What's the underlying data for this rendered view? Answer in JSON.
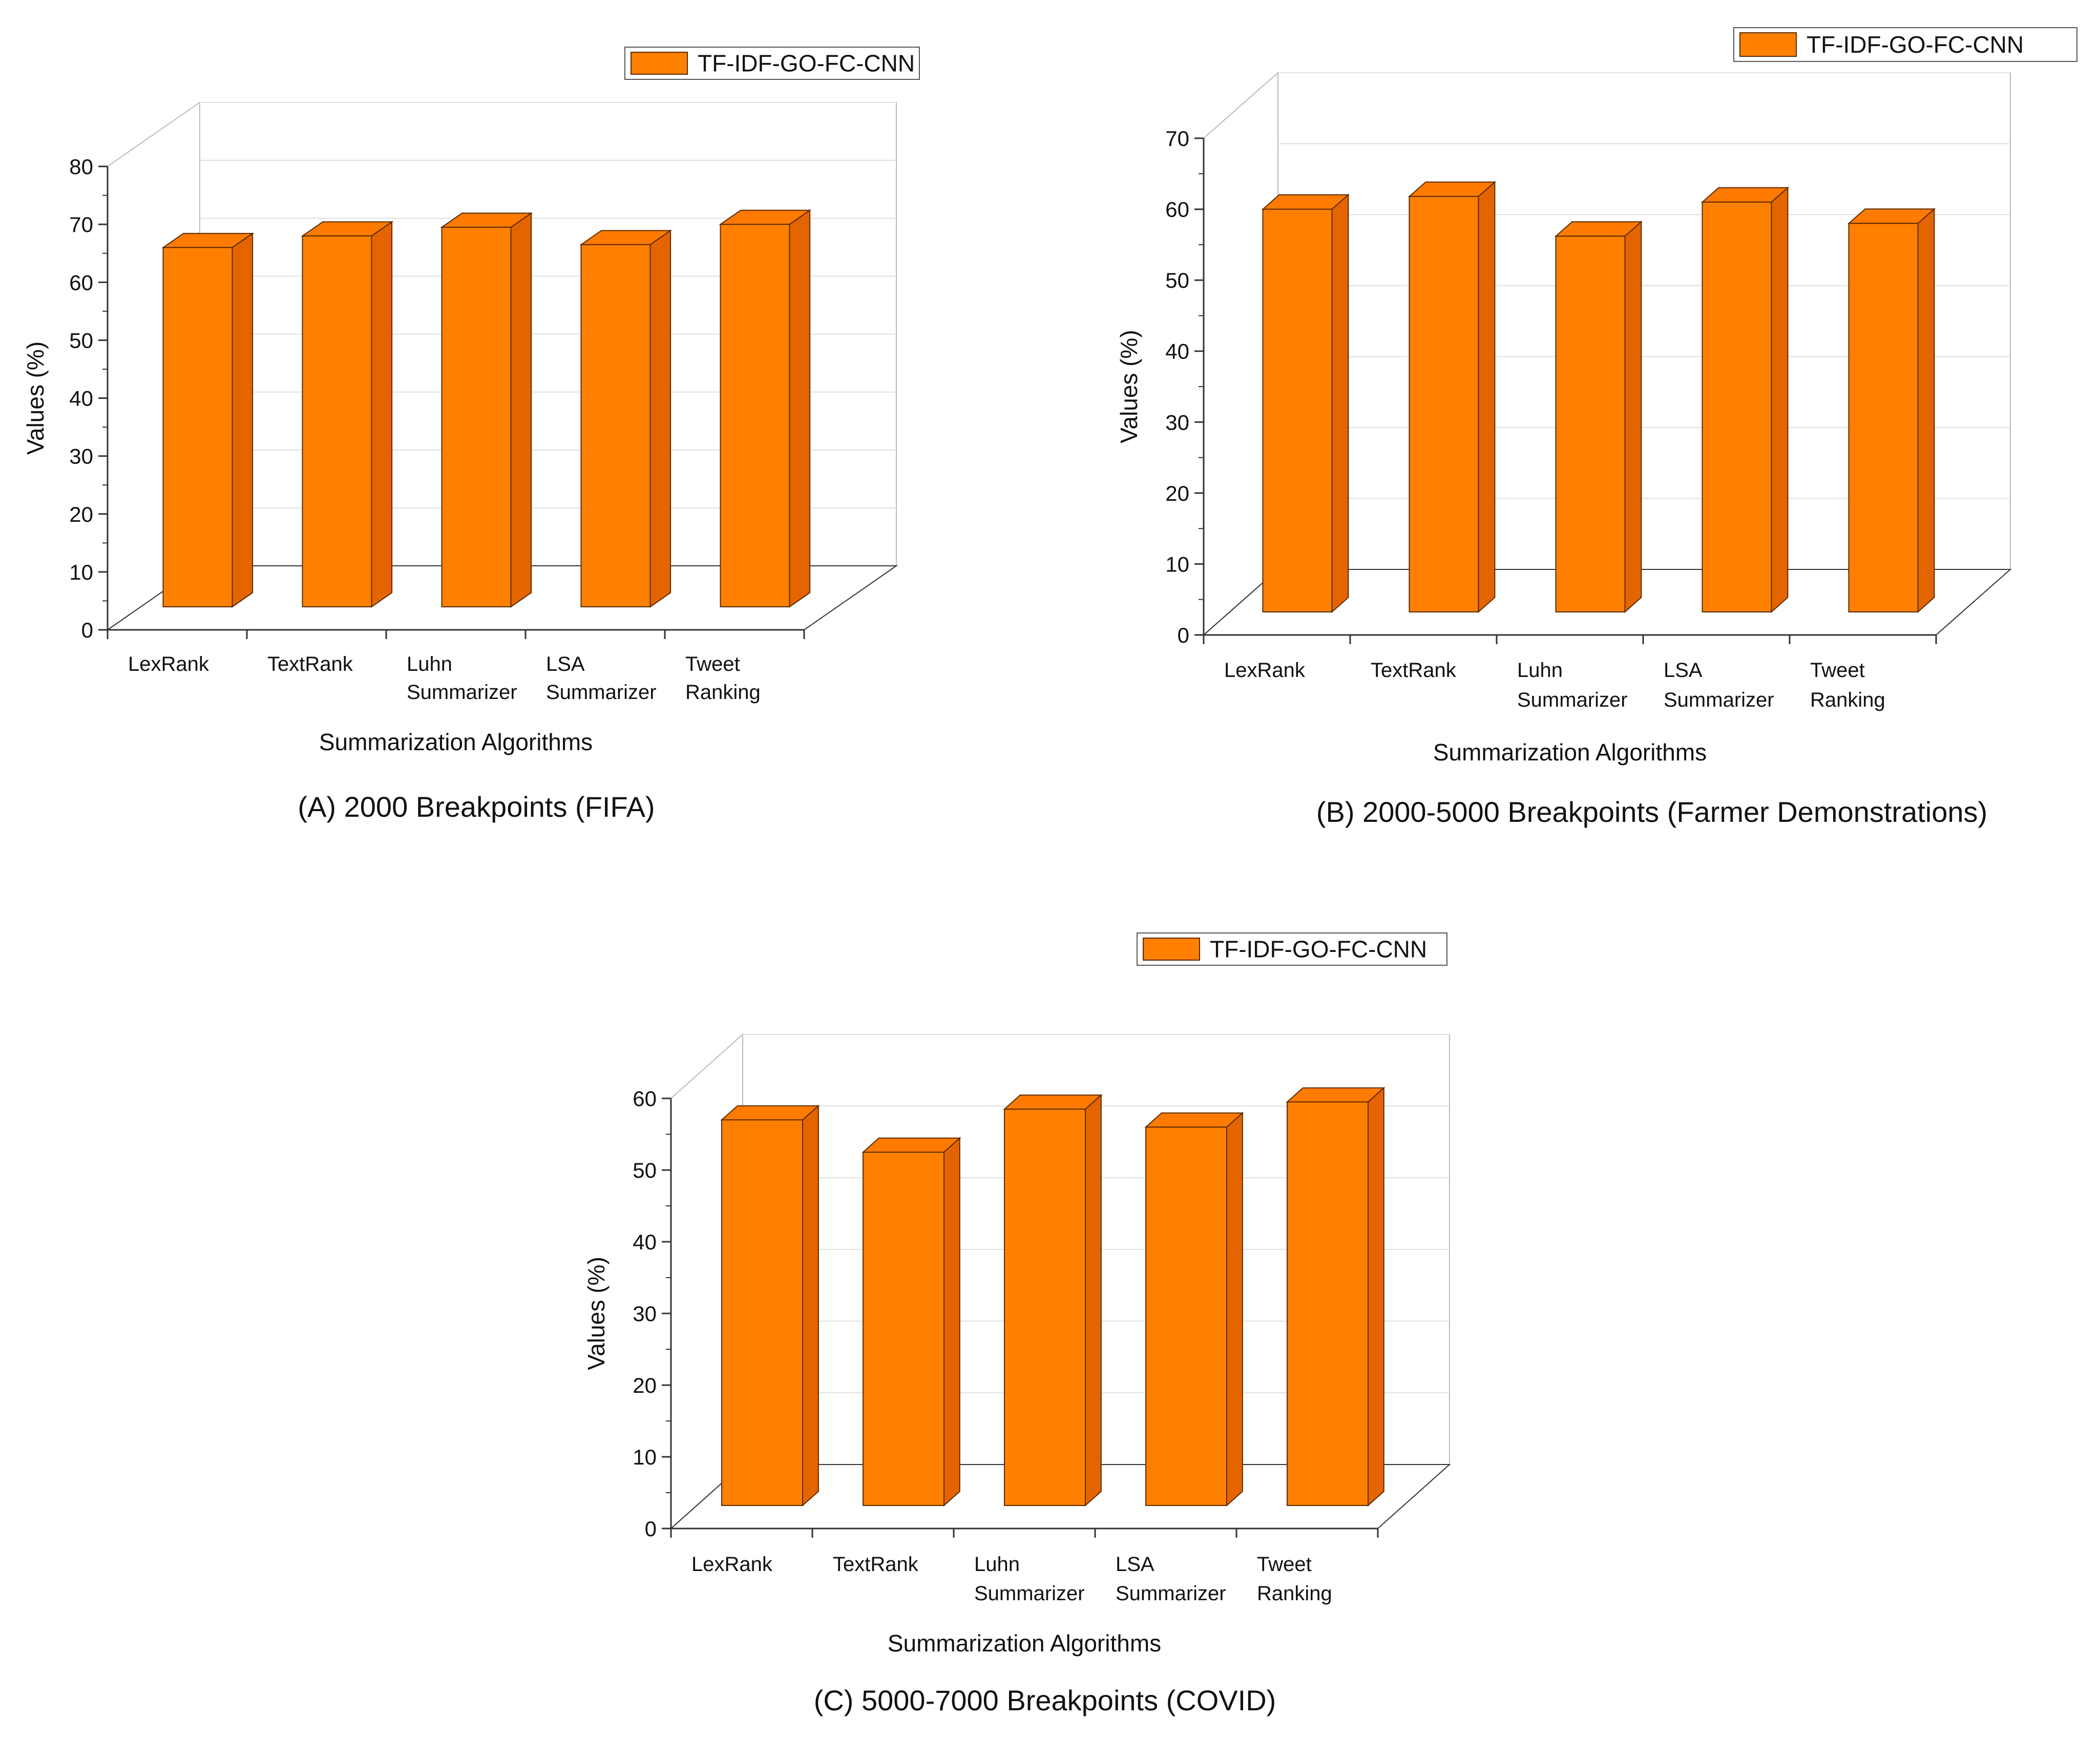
{
  "colors": {
    "bar_front": "#ff8000",
    "bar_top": "#ff7a00",
    "bar_side": "#e46500",
    "bar_edge": "#5a2a00",
    "axis": "#333333",
    "grid": "#e0e0e0"
  },
  "chart_data": [
    {
      "type": "bar",
      "caption": "(A) 2000 Breakpoints (FIFA)",
      "legend": "TF-IDF-GO-FC-CNN",
      "xlabel": "Summarization Algorithms",
      "ylabel": "Values (%)",
      "categories": [
        [
          "LexRank"
        ],
        [
          "TextRank"
        ],
        [
          "Luhn",
          "Summarizer"
        ],
        [
          "LSA",
          "Summarizer"
        ],
        [
          "Tweet",
          "Ranking"
        ]
      ],
      "values": [
        66,
        68,
        69.5,
        66.5,
        70
      ],
      "ylim": [
        0,
        80
      ],
      "yticks": [
        0,
        10,
        20,
        30,
        40,
        50,
        60,
        70,
        80
      ],
      "grid": true,
      "legend_position": "top-right"
    },
    {
      "type": "bar",
      "caption": "(B) 2000-5000 Breakpoints (Farmer Demonstrations)",
      "legend": "TF-IDF-GO-FC-CNN",
      "xlabel": "Summarization Algorithms",
      "ylabel": "Values (%)",
      "categories": [
        [
          "LexRank"
        ],
        [
          "TextRank"
        ],
        [
          "Luhn",
          "Summarizer"
        ],
        [
          "LSA",
          "Summarizer"
        ],
        [
          "Tweet",
          "Ranking"
        ]
      ],
      "values": [
        60,
        61.8,
        56.2,
        61,
        58
      ],
      "ylim": [
        0,
        70
      ],
      "yticks": [
        0,
        10,
        20,
        30,
        40,
        50,
        60,
        70
      ],
      "grid": true,
      "legend_position": "top-right"
    },
    {
      "type": "bar",
      "caption": "(C) 5000-7000 Breakpoints (COVID)",
      "legend": "TF-IDF-GO-FC-CNN",
      "xlabel": "Summarization Algorithms",
      "ylabel": "Values (%)",
      "categories": [
        [
          "LexRank"
        ],
        [
          "TextRank"
        ],
        [
          "Luhn",
          "Summarizer"
        ],
        [
          "LSA",
          "Summarizer"
        ],
        [
          "Tweet",
          "Ranking"
        ]
      ],
      "values": [
        57,
        52.5,
        58.5,
        56,
        59.5
      ],
      "ylim": [
        0,
        60
      ],
      "yticks": [
        0,
        10,
        20,
        30,
        40,
        50,
        60
      ],
      "grid": true,
      "legend_position": "top-right"
    }
  ]
}
